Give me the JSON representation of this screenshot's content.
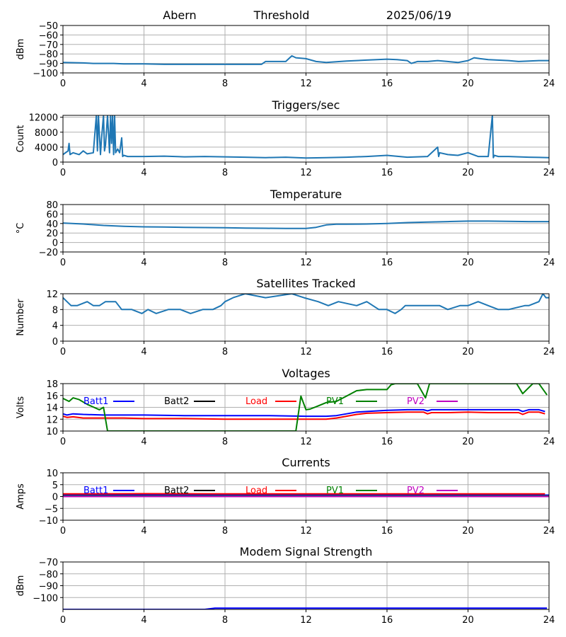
{
  "header": {
    "station": "Abern",
    "mode": "Threshold",
    "date": "2025/06/19"
  },
  "chart_data": [
    {
      "type": "line",
      "title": "",
      "ylabel": "dBm",
      "xlim": [
        0,
        24
      ],
      "ylim": [
        -100,
        -50
      ],
      "yticks": [
        -50,
        -60,
        -70,
        -80,
        -90,
        -100
      ],
      "xticks": [
        0,
        4,
        8,
        12,
        16,
        20,
        24
      ],
      "grid": true,
      "series": [
        {
          "color": "#1f77b4",
          "x": [
            0,
            1,
            1.5,
            2,
            2.5,
            3,
            4,
            5,
            6,
            7,
            8,
            9,
            9.8,
            10,
            11,
            11.3,
            11.5,
            12,
            12.5,
            13,
            14,
            15,
            15.5,
            16,
            16.5,
            17,
            17.2,
            17.5,
            18,
            18.5,
            19,
            19.5,
            20,
            20.3,
            20.6,
            21,
            22,
            22.5,
            23,
            23.5,
            24
          ],
          "y": [
            -89,
            -89.5,
            -90,
            -90,
            -90,
            -90.5,
            -90.5,
            -91,
            -91,
            -91,
            -91,
            -91,
            -91,
            -88,
            -88,
            -82,
            -84,
            -85,
            -88,
            -89,
            -87.5,
            -86.5,
            -86,
            -85.5,
            -86,
            -87,
            -90,
            -88,
            -88,
            -87,
            -88,
            -89,
            -87,
            -84,
            -85,
            -86,
            -87,
            -88,
            -87.5,
            -87,
            -87
          ]
        }
      ]
    },
    {
      "type": "line",
      "title": "Triggers/sec",
      "ylabel": "Count",
      "xlim": [
        0,
        24
      ],
      "ylim": [
        0,
        12500
      ],
      "yticks": [
        0,
        4000,
        8000,
        12000
      ],
      "xticks": [
        0,
        4,
        8,
        12,
        16,
        20,
        24
      ],
      "grid": true,
      "series": [
        {
          "color": "#1f77b4",
          "x": [
            0,
            0.25,
            0.3,
            0.35,
            0.5,
            0.8,
            1,
            1.2,
            1.5,
            1.65,
            1.7,
            1.75,
            1.85,
            1.9,
            2.0,
            2.05,
            2.1,
            2.2,
            2.3,
            2.35,
            2.4,
            2.45,
            2.5,
            2.55,
            2.6,
            2.7,
            2.8,
            2.9,
            2.95,
            3.0,
            3.2,
            4,
            5,
            6,
            7,
            8,
            9,
            10,
            11,
            12,
            13,
            14,
            15,
            16,
            17,
            18,
            18.5,
            18.55,
            18.6,
            19,
            19.5,
            20,
            20.5,
            21,
            21.2,
            21.25,
            21.3,
            21.5,
            22,
            23,
            24
          ],
          "y": [
            2000,
            3000,
            5000,
            2000,
            2500,
            2000,
            3000,
            2200,
            2500,
            12500,
            3000,
            12500,
            2000,
            6000,
            12500,
            3000,
            4500,
            12500,
            2500,
            12500,
            5000,
            12500,
            2000,
            12500,
            2500,
            3500,
            2500,
            6500,
            1500,
            1800,
            1500,
            1500,
            1600,
            1400,
            1500,
            1400,
            1300,
            1200,
            1300,
            1100,
            1200,
            1300,
            1500,
            1800,
            1300,
            1500,
            4000,
            1500,
            2500,
            2000,
            1800,
            2500,
            1500,
            1500,
            12500,
            1200,
            1800,
            1500,
            1500,
            1300,
            1200
          ]
        }
      ]
    },
    {
      "type": "line",
      "title": "Temperature",
      "ylabel": "°C",
      "xlim": [
        0,
        24
      ],
      "ylim": [
        -20,
        80
      ],
      "yticks": [
        -20,
        0,
        20,
        40,
        60,
        80
      ],
      "xticks": [
        0,
        4,
        8,
        12,
        16,
        20,
        24
      ],
      "grid": true,
      "series": [
        {
          "color": "#1f77b4",
          "x": [
            0,
            1,
            2,
            3,
            4,
            5,
            6,
            7,
            8,
            9,
            10,
            11,
            12,
            12.5,
            13,
            13.5,
            14,
            15,
            16,
            17,
            18,
            19,
            20,
            21,
            22,
            23,
            24
          ],
          "y": [
            41,
            39,
            36,
            34,
            33,
            32.5,
            32,
            31.5,
            31,
            30.5,
            30,
            29.5,
            29.5,
            32,
            37,
            38.5,
            38.5,
            39,
            40,
            42,
            43,
            44,
            45,
            45,
            44.5,
            44,
            44
          ]
        }
      ]
    },
    {
      "type": "line",
      "title": "Satellites Tracked",
      "ylabel": "Number",
      "xlim": [
        0,
        24
      ],
      "ylim": [
        0,
        12
      ],
      "yticks": [
        0,
        4,
        8,
        12
      ],
      "xticks": [
        0,
        4,
        8,
        12,
        16,
        20,
        24
      ],
      "grid": true,
      "series": [
        {
          "color": "#1f77b4",
          "x": [
            0,
            0.2,
            0.4,
            0.7,
            1.2,
            1.5,
            1.8,
            2.1,
            2.6,
            2.9,
            3.4,
            3.9,
            4.2,
            4.6,
            5.2,
            5.8,
            6.3,
            6.9,
            7.4,
            7.8,
            8.0,
            8.4,
            9,
            10,
            11.3,
            11.9,
            12.6,
            13.1,
            13.6,
            14.5,
            15,
            15.6,
            16,
            16.4,
            16.7,
            16.9,
            17.3,
            17.8,
            18.6,
            19,
            19.6,
            20,
            20.5,
            21,
            21.5,
            22,
            22.8,
            23,
            23.5,
            23.7,
            23.85,
            24
          ],
          "y": [
            11,
            10,
            9,
            9,
            10,
            9,
            9,
            10,
            10,
            8,
            8,
            7,
            8,
            7,
            8,
            8,
            7,
            8,
            8,
            9,
            10,
            11,
            12,
            11,
            12,
            11,
            10,
            9,
            10,
            9,
            10,
            8,
            8,
            7,
            8,
            9,
            9,
            9,
            9,
            8,
            9,
            9,
            10,
            9,
            8,
            8,
            9,
            9,
            10,
            12,
            11,
            11
          ]
        }
      ]
    },
    {
      "type": "line",
      "title": "Voltages",
      "ylabel": "Volts",
      "xlim": [
        0,
        24
      ],
      "ylim": [
        10,
        18
      ],
      "yticks": [
        10,
        12,
        14,
        16,
        18
      ],
      "xticks": [
        0,
        4,
        8,
        12,
        16,
        20,
        24
      ],
      "grid": true,
      "legend": "top",
      "series": [
        {
          "name": "Batt1",
          "color": "#0000ff",
          "x": [
            0,
            0.2,
            0.5,
            1,
            2,
            3,
            4,
            6,
            8,
            10,
            12,
            13,
            13.5,
            14,
            14.5,
            15,
            16,
            17,
            17.8,
            18,
            18.2,
            19,
            20,
            21,
            22,
            22.5,
            22.7,
            23,
            23.5,
            23.8
          ],
          "y": [
            12.9,
            12.7,
            12.9,
            12.8,
            12.7,
            12.7,
            12.7,
            12.6,
            12.6,
            12.6,
            12.5,
            12.5,
            12.6,
            12.9,
            13.2,
            13.3,
            13.5,
            13.6,
            13.6,
            13.4,
            13.6,
            13.6,
            13.6,
            13.6,
            13.6,
            13.6,
            13.3,
            13.6,
            13.6,
            13.3
          ]
        },
        {
          "name": "Batt2",
          "color": "#000000",
          "x": [],
          "y": []
        },
        {
          "name": "Load",
          "color": "#ff0000",
          "x": [
            0,
            0.2,
            0.5,
            1,
            2,
            3,
            4,
            6,
            8,
            10,
            12,
            13,
            13.5,
            14,
            14.5,
            15,
            16,
            17,
            17.8,
            18,
            18.2,
            19,
            20,
            21,
            22,
            22.5,
            22.7,
            23,
            23.5,
            23.8
          ],
          "y": [
            12.5,
            12.3,
            12.4,
            12.2,
            12.2,
            12.2,
            12.1,
            12.1,
            12.0,
            12.0,
            12.0,
            12.0,
            12.2,
            12.5,
            12.8,
            13.0,
            13.1,
            13.2,
            13.2,
            12.9,
            13.1,
            13.1,
            13.2,
            13.1,
            13.1,
            13.1,
            12.8,
            13.2,
            13.2,
            12.9
          ]
        },
        {
          "name": "PV1",
          "color": "#008000",
          "x": [
            0,
            0.3,
            0.5,
            0.8,
            1.2,
            1.8,
            2.0,
            2.2,
            11.5,
            11.75,
            12.0,
            12.2,
            12.5,
            13,
            13.5,
            14,
            14.5,
            15,
            16,
            16.2,
            16.4,
            17.5,
            17.9,
            18.1,
            22.4,
            22.7,
            23.2,
            23.5,
            23.9
          ],
          "y": [
            15.5,
            15.0,
            15.6,
            15.3,
            14.5,
            13.6,
            14.0,
            10.0,
            10.0,
            15.9,
            13.6,
            13.7,
            14.1,
            14.8,
            15.0,
            15.9,
            16.8,
            17.0,
            17.0,
            17.8,
            18.0,
            18.0,
            15.6,
            18.0,
            18.0,
            16.3,
            18.0,
            18.0,
            16.1
          ]
        },
        {
          "name": "PV2",
          "color": "#bf00bf",
          "x": [],
          "y": []
        }
      ]
    },
    {
      "type": "line",
      "title": "Currents",
      "ylabel": "Amps",
      "xlim": [
        0,
        24
      ],
      "ylim": [
        -10,
        10
      ],
      "yticks": [
        -10,
        -5,
        0,
        5,
        10
      ],
      "xticks": [
        0,
        4,
        8,
        12,
        16,
        20,
        24
      ],
      "grid": true,
      "legend": "top",
      "series": [
        {
          "name": "Batt1",
          "color": "#0000ff",
          "x": [
            0,
            24
          ],
          "y": [
            0.6,
            0.6
          ]
        },
        {
          "name": "Batt2",
          "color": "#000000",
          "x": [],
          "y": []
        },
        {
          "name": "Load",
          "color": "#ff0000",
          "x": [
            0,
            4,
            8,
            12,
            16,
            20,
            23.8
          ],
          "y": [
            1.1,
            1.2,
            1.1,
            1.1,
            1.1,
            1.1,
            1.1
          ]
        },
        {
          "name": "PV1",
          "color": "#008000",
          "x": [
            0,
            24
          ],
          "y": [
            0.2,
            0.2
          ]
        },
        {
          "name": "PV2",
          "color": "#bf00bf",
          "x": [
            0,
            24
          ],
          "y": [
            0.0,
            0.0
          ]
        }
      ]
    },
    {
      "type": "line",
      "title": "Modem Signal Strength",
      "ylabel": "dBm",
      "xlim": [
        0,
        24
      ],
      "ylim": [
        -110,
        -70
      ],
      "yticks": [
        -70,
        -80,
        -90,
        -100
      ],
      "xticks": [
        0,
        4,
        8,
        12,
        16,
        20,
        24
      ],
      "grid": true,
      "series": [
        {
          "color": "#0000ff",
          "x": [
            0,
            7,
            7.5,
            23.9
          ],
          "y": [
            -110,
            -110,
            -109,
            -109
          ]
        }
      ]
    }
  ]
}
